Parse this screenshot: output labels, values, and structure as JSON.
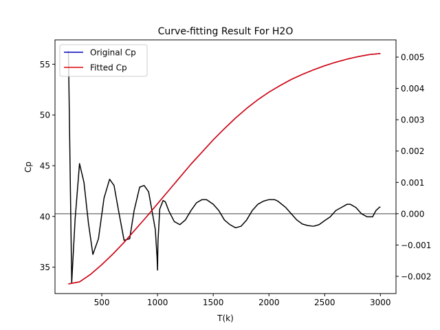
{
  "chart_data": {
    "type": "line",
    "title": "Curve-fitting Result For H2O",
    "xlabel": "T(k)",
    "ylabel": "Cp",
    "ylabel_color": "#ff0000",
    "xlim": [
      80,
      3140
    ],
    "ylim_left": [
      32.4,
      57.4
    ],
    "ylim_right": [
      -0.00255,
      0.00555
    ],
    "x_ticks": [
      500,
      1000,
      1500,
      2000,
      2500,
      3000
    ],
    "y_ticks_left": [
      35,
      40,
      45,
      50,
      55
    ],
    "y_ticks_right": [
      -0.002,
      -0.001,
      0.0,
      0.001,
      0.002,
      0.003,
      0.004,
      0.005
    ],
    "y_tick_labels_right": [
      "−0.002",
      "−0.001",
      "0.000",
      "0.001",
      "0.002",
      "0.003",
      "0.004",
      "0.005"
    ],
    "grid": false,
    "legend_placement": "top-left",
    "legend": [
      {
        "name": "Original Cp",
        "color": "#0000bb"
      },
      {
        "name": "Fitted Cp",
        "color": "#e00000"
      }
    ],
    "series": [
      {
        "name": "Original Cp",
        "axis": "left",
        "color": "#0000bb",
        "x": [
          200,
          300,
          400,
          500,
          600,
          700,
          800,
          900,
          1000,
          1100,
          1200,
          1300,
          1400,
          1500,
          1600,
          1700,
          1800,
          1900,
          2000,
          2100,
          2200,
          2300,
          2400,
          2500,
          2600,
          2700,
          2800,
          2900,
          3000
        ],
        "y": [
          33.35,
          33.55,
          34.3,
          35.25,
          36.3,
          37.45,
          38.7,
          39.95,
          41.25,
          42.55,
          43.85,
          45.15,
          46.35,
          47.55,
          48.65,
          49.7,
          50.65,
          51.5,
          52.25,
          52.9,
          53.5,
          54.0,
          54.45,
          54.85,
          55.2,
          55.5,
          55.75,
          55.95,
          56.05
        ]
      },
      {
        "name": "Fitted Cp",
        "axis": "left",
        "color": "#e00000",
        "x": [
          200,
          300,
          400,
          500,
          600,
          700,
          800,
          900,
          1000,
          1100,
          1200,
          1300,
          1400,
          1500,
          1600,
          1700,
          1800,
          1900,
          2000,
          2100,
          2200,
          2300,
          2400,
          2500,
          2600,
          2700,
          2800,
          2900,
          3000
        ],
        "y": [
          33.35,
          33.55,
          34.3,
          35.25,
          36.3,
          37.45,
          38.7,
          39.95,
          41.25,
          42.55,
          43.85,
          45.15,
          46.35,
          47.55,
          48.65,
          49.7,
          50.65,
          51.5,
          52.25,
          52.9,
          53.5,
          54.0,
          54.45,
          54.85,
          55.2,
          55.5,
          55.75,
          55.95,
          56.05
        ]
      },
      {
        "name": "",
        "axis": "right",
        "color": "#000000",
        "x": [
          200,
          203,
          230,
          260,
          300,
          340,
          380,
          420,
          470,
          520,
          570,
          610,
          650,
          700,
          750,
          790,
          840,
          880,
          920,
          950,
          980,
          996,
          1000,
          1004,
          1020,
          1050,
          1070,
          1100,
          1150,
          1200,
          1250,
          1300,
          1350,
          1400,
          1440,
          1500,
          1550,
          1600,
          1650,
          1700,
          1750,
          1800,
          1850,
          1900,
          1950,
          2000,
          2050,
          2080,
          2150,
          2200,
          2250,
          2300,
          2350,
          2400,
          2450,
          2500,
          2550,
          2600,
          2650,
          2700,
          2730,
          2780,
          2830,
          2880,
          2930,
          2960,
          2990,
          3000
        ],
        "y": [
          0.0052,
          0.0046,
          -0.0022,
          -0.0002,
          0.0016,
          0.001,
          -0.0003,
          -0.0013,
          -0.0008,
          0.0005,
          0.0011,
          0.0009,
          0.0001,
          -0.00085,
          -0.0008,
          0.0001,
          0.00085,
          0.0009,
          0.0007,
          0.0001,
          -0.0005,
          -0.0014,
          -0.0018,
          -0.0009,
          0.00015,
          0.00042,
          0.00038,
          0.0001,
          -0.00025,
          -0.00035,
          -0.0002,
          0.0001,
          0.00035,
          0.00045,
          0.00045,
          0.0003,
          0.0001,
          -0.0002,
          -0.00035,
          -0.00045,
          -0.0004,
          -0.0002,
          0.0001,
          0.0003,
          0.0004,
          0.00045,
          0.00045,
          0.0004,
          0.0002,
          0.0,
          -0.0002,
          -0.00033,
          -0.00038,
          -0.0004,
          -0.00035,
          -0.00022,
          -0.0001,
          0.0001,
          0.0002,
          0.0003,
          0.0003,
          0.0002,
          0.0,
          -0.0001,
          -0.0001,
          0.0001,
          0.0002,
          0.00022
        ]
      },
      {
        "name": "",
        "axis": "right",
        "color": "#808080",
        "x": [
          80,
          3140
        ],
        "y": [
          0.0,
          0.0
        ]
      }
    ]
  }
}
